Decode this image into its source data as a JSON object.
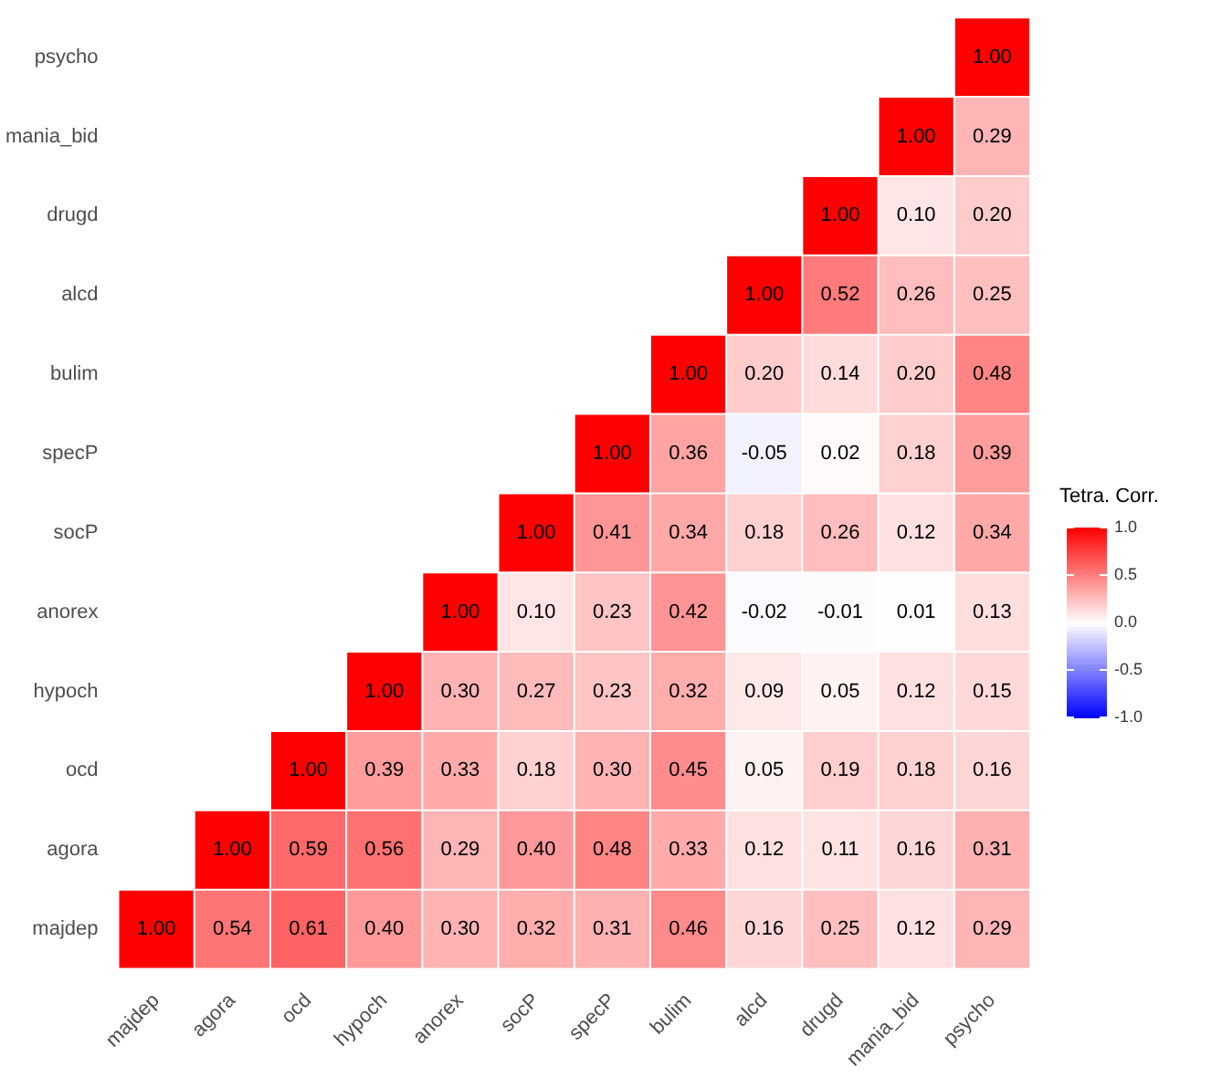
{
  "chart_data": {
    "type": "heatmap",
    "clabel": "Tetra. Corr.",
    "categories": [
      "majdep",
      "agora",
      "ocd",
      "hypoch",
      "anorex",
      "socP",
      "specP",
      "bulim",
      "alcd",
      "drugd",
      "mania_bid",
      "psycho"
    ],
    "y_categories": [
      "psycho",
      "mania_bid",
      "drugd",
      "alcd",
      "bulim",
      "specP",
      "socP",
      "anorex",
      "hypoch",
      "ocd",
      "agora",
      "majdep"
    ],
    "cells": [
      [
        null,
        null,
        null,
        null,
        null,
        null,
        null,
        null,
        null,
        null,
        null,
        1.0
      ],
      [
        null,
        null,
        null,
        null,
        null,
        null,
        null,
        null,
        null,
        null,
        1.0,
        0.29
      ],
      [
        null,
        null,
        null,
        null,
        null,
        null,
        null,
        null,
        null,
        1.0,
        0.1,
        0.2
      ],
      [
        null,
        null,
        null,
        null,
        null,
        null,
        null,
        null,
        1.0,
        0.52,
        0.26,
        0.25
      ],
      [
        null,
        null,
        null,
        null,
        null,
        null,
        null,
        1.0,
        0.2,
        0.14,
        0.2,
        0.48
      ],
      [
        null,
        null,
        null,
        null,
        null,
        null,
        1.0,
        0.36,
        -0.05,
        0.02,
        0.18,
        0.39
      ],
      [
        null,
        null,
        null,
        null,
        null,
        1.0,
        0.41,
        0.34,
        0.18,
        0.26,
        0.12,
        0.34
      ],
      [
        null,
        null,
        null,
        null,
        1.0,
        0.1,
        0.23,
        0.42,
        -0.02,
        -0.01,
        0.01,
        0.13
      ],
      [
        null,
        null,
        null,
        1.0,
        0.3,
        0.27,
        0.23,
        0.32,
        0.09,
        0.05,
        0.12,
        0.15
      ],
      [
        null,
        null,
        1.0,
        0.39,
        0.33,
        0.18,
        0.3,
        0.45,
        0.05,
        0.19,
        0.18,
        0.16
      ],
      [
        null,
        1.0,
        0.59,
        0.56,
        0.29,
        0.4,
        0.48,
        0.33,
        0.12,
        0.11,
        0.16,
        0.31
      ],
      [
        1.0,
        0.54,
        0.61,
        0.4,
        0.3,
        0.32,
        0.31,
        0.46,
        0.16,
        0.25,
        0.12,
        0.29
      ]
    ],
    "cell_labels": [
      [
        null,
        null,
        null,
        null,
        null,
        null,
        null,
        null,
        null,
        null,
        null,
        "1.00"
      ],
      [
        null,
        null,
        null,
        null,
        null,
        null,
        null,
        null,
        null,
        null,
        "1.00",
        "0.29"
      ],
      [
        null,
        null,
        null,
        null,
        null,
        null,
        null,
        null,
        null,
        "1.00",
        "0.10",
        "0.20"
      ],
      [
        null,
        null,
        null,
        null,
        null,
        null,
        null,
        null,
        "1.00",
        "0.52",
        "0.26",
        "0.25"
      ],
      [
        null,
        null,
        null,
        null,
        null,
        null,
        null,
        "1.00",
        "0.20",
        "0.14",
        "0.20",
        "0.48"
      ],
      [
        null,
        null,
        null,
        null,
        null,
        null,
        "1.00",
        "0.36",
        "-0.05",
        "0.02",
        "0.18",
        "0.39"
      ],
      [
        null,
        null,
        null,
        null,
        null,
        "1.00",
        "0.41",
        "0.34",
        "0.18",
        "0.26",
        "0.12",
        "0.34"
      ],
      [
        null,
        null,
        null,
        null,
        "1.00",
        "0.10",
        "0.23",
        "0.42",
        "-0.02",
        "-0.01",
        "0.01",
        "0.13"
      ],
      [
        null,
        null,
        null,
        "1.00",
        "0.30",
        "0.27",
        "0.23",
        "0.32",
        "0.09",
        "0.05",
        "0.12",
        "0.15"
      ],
      [
        null,
        null,
        "1.00",
        "0.39",
        "0.33",
        "0.18",
        "0.30",
        "0.45",
        "0.05",
        "0.19",
        "0.18",
        "0.16"
      ],
      [
        null,
        "1.00",
        "0.59",
        "0.56",
        "0.29",
        "0.40",
        "0.48",
        "0.33",
        "0.12",
        "0.11",
        "0.16",
        "0.31"
      ],
      [
        "1.00",
        "0.54",
        "0.61",
        "0.40",
        "0.30",
        "0.32",
        "0.31",
        "0.46",
        "0.16",
        "0.25",
        "0.12",
        "0.29"
      ]
    ],
    "clim": [
      -1,
      1
    ],
    "cticks": [
      {
        "value": 1,
        "label": "1.0"
      },
      {
        "value": 0.5,
        "label": "0.5"
      },
      {
        "value": 0,
        "label": "0.0"
      },
      {
        "value": -0.5,
        "label": "-0.5"
      },
      {
        "value": -1,
        "label": "-1.0"
      }
    ]
  }
}
